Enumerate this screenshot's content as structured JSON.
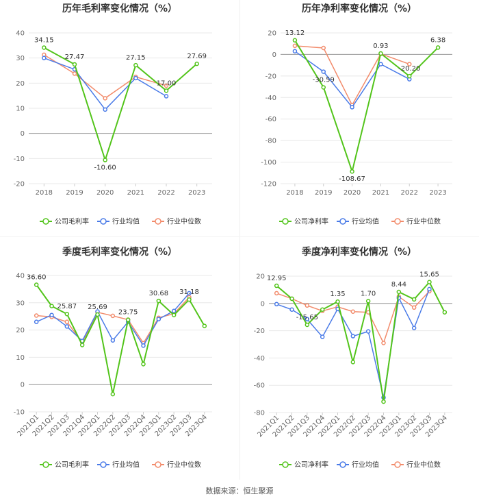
{
  "colors": {
    "company": "#52c41a",
    "avg": "#4a7be8",
    "median": "#f28b6b",
    "grid": "#e8e8e8",
    "axis": "#999999"
  },
  "legend": [
    "公司毛利率",
    "行业均值",
    "行业中位数"
  ],
  "source": "数据来源：恒生聚源",
  "chart_data": [
    {
      "type": "line",
      "title": "历年毛利率变化情况（%）",
      "categories": [
        "2018",
        "2019",
        "2020",
        "2021",
        "2022",
        "2023"
      ],
      "ylim": [
        -20,
        40
      ],
      "yticks": [
        -20,
        -10,
        0,
        10,
        20,
        30,
        40
      ],
      "legend": [
        "公司毛利率",
        "行业均值",
        "行业中位数"
      ],
      "series": [
        {
          "name": "公司毛利率",
          "values": [
            34.15,
            27.47,
            -10.6,
            27.15,
            17.0,
            27.69
          ],
          "labels": [
            "34.15",
            "27.47",
            "-10.60",
            "27.15",
            "17.00",
            "27.69"
          ]
        },
        {
          "name": "行业均值",
          "values": [
            30.0,
            25.5,
            9.5,
            22.0,
            14.8,
            null
          ]
        },
        {
          "name": "行业中位数",
          "values": [
            31.3,
            23.8,
            14.0,
            22.5,
            19.0,
            null
          ]
        }
      ]
    },
    {
      "type": "line",
      "title": "历年净利率变化情况（%）",
      "categories": [
        "2018",
        "2019",
        "2020",
        "2021",
        "2022",
        "2023"
      ],
      "ylim": [
        -120,
        20
      ],
      "yticks": [
        -120,
        -100,
        -80,
        -60,
        -40,
        -20,
        0,
        20
      ],
      "legend": [
        "公司净利率",
        "行业均值",
        "行业中位数"
      ],
      "series": [
        {
          "name": "公司净利率",
          "values": [
            13.12,
            -30.59,
            -108.67,
            0.93,
            -20.2,
            6.38
          ],
          "labels": [
            "13.12",
            "-30.59",
            "-108.67",
            "0.93",
            "-20.20",
            "6.38"
          ]
        },
        {
          "name": "行业均值",
          "values": [
            3.0,
            -16.0,
            -49.0,
            -9.0,
            -23.0,
            null
          ]
        },
        {
          "name": "行业中位数",
          "values": [
            8.0,
            6.0,
            -47.0,
            0.5,
            -9.0,
            null
          ]
        }
      ]
    },
    {
      "type": "line",
      "title": "季度毛利率变化情况（%）",
      "categories": [
        "2021Q1",
        "2021Q2",
        "2021Q3",
        "2021Q4",
        "2022Q1",
        "2022Q2",
        "2022Q3",
        "2022Q4",
        "2023Q1",
        "2023Q2",
        "2023Q3",
        "2023Q4"
      ],
      "ylim": [
        -10,
        40
      ],
      "yticks": [
        -10,
        0,
        10,
        20,
        30,
        40
      ],
      "legend": [
        "公司毛利率",
        "行业均值",
        "行业中位数"
      ],
      "series": [
        {
          "name": "公司毛利率",
          "values": [
            36.6,
            28.8,
            25.87,
            14.5,
            25.69,
            -3.5,
            23.75,
            7.5,
            30.68,
            25.5,
            31.18,
            21.5
          ],
          "labels": [
            "36.60",
            "",
            "25.87",
            "",
            "25.69",
            "",
            "23.75",
            "",
            "30.68",
            "",
            "31.18",
            ""
          ]
        },
        {
          "name": "行业均值",
          "values": [
            23.0,
            25.5,
            21.3,
            16.0,
            26.8,
            16.2,
            23.0,
            14.3,
            24.0,
            27.0,
            33.5,
            null
          ]
        },
        {
          "name": "行业中位数",
          "values": [
            25.3,
            24.8,
            23.0,
            15.5,
            26.5,
            25.2,
            23.8,
            15.2,
            24.5,
            26.0,
            32.0,
            null
          ]
        }
      ]
    },
    {
      "type": "line",
      "title": "季度净利率变化情况（%）",
      "categories": [
        "2021Q1",
        "2021Q2",
        "2021Q3",
        "2021Q4",
        "2022Q1",
        "2022Q2",
        "2022Q3",
        "2022Q4",
        "2023Q1",
        "2023Q2",
        "2023Q3",
        "2023Q4"
      ],
      "ylim": [
        -80,
        20
      ],
      "yticks": [
        -80,
        -60,
        -40,
        -20,
        0,
        20
      ],
      "legend": [
        "公司净利率",
        "行业均值",
        "行业中位数"
      ],
      "series": [
        {
          "name": "公司净利率",
          "values": [
            12.95,
            3.5,
            -15.65,
            -4.5,
            1.35,
            -43.0,
            1.7,
            -72.0,
            8.44,
            3.0,
            15.65,
            -6.5
          ],
          "labels": [
            "12.95",
            "",
            "-15.65",
            "",
            "1.35",
            "",
            "1.70",
            "",
            "8.44",
            "",
            "15.65",
            ""
          ]
        },
        {
          "name": "行业均值",
          "values": [
            -0.5,
            -4.5,
            -11.5,
            -24.5,
            -4.0,
            -24.0,
            -20.5,
            -69.0,
            4.0,
            -18.0,
            10.5,
            null
          ]
        },
        {
          "name": "行业中位数",
          "values": [
            7.5,
            3.5,
            -1.5,
            -5.5,
            -2.5,
            -6.0,
            -6.5,
            -29.0,
            5.0,
            -3.0,
            9.0,
            null
          ]
        }
      ]
    }
  ]
}
